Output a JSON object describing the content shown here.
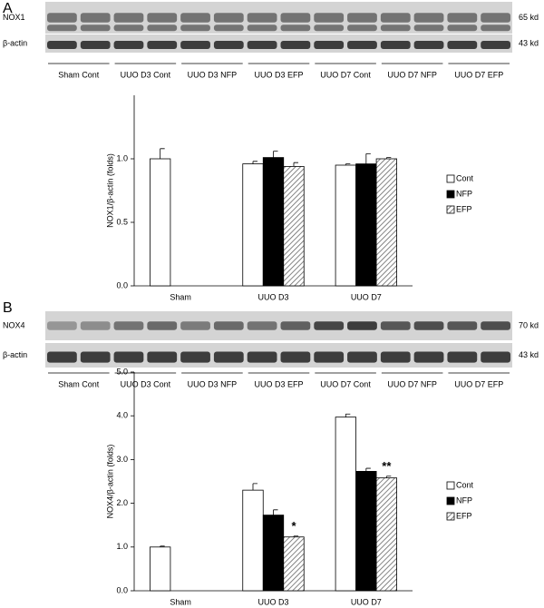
{
  "chart_data": [
    {
      "type": "bar",
      "panel": "A",
      "ylabel": "NOX1/β-actin (folds)",
      "blot": {
        "bands": [
          {
            "label": "NOX1",
            "size": "65 kd"
          },
          {
            "label": "β-actin",
            "size": "43 kd"
          }
        ],
        "lanes": [
          "Sham Cont",
          "UUO  D3 Cont",
          "UUO  D3 NFP",
          "UUO  D3 EFP",
          "UUO  D7 Cont",
          "UUO  D7 NFP",
          "UUO  D7 EFP"
        ]
      },
      "categories": [
        "Sham",
        "UUO D3",
        "UUO D7"
      ],
      "series": [
        {
          "name": "Cont",
          "color": "#ffffff",
          "values": [
            1.0,
            0.96,
            0.95
          ],
          "errors": [
            0.08,
            0.02,
            0.01
          ]
        },
        {
          "name": "NFP",
          "color": "#000000",
          "values": [
            null,
            1.01,
            0.96
          ],
          "errors": [
            null,
            0.05,
            0.08
          ]
        },
        {
          "name": "EFP",
          "color": "#bbbbbb",
          "hatch": true,
          "values": [
            null,
            0.94,
            1.0
          ],
          "errors": [
            null,
            0.03,
            0.01
          ]
        }
      ],
      "annotations": [],
      "ylim": [
        0,
        1.5
      ],
      "yticks": [
        {
          "value": 0,
          "label": "0.0"
        },
        {
          "value": 0.5,
          "label": "0.5"
        },
        {
          "value": 1,
          "label": "1.0"
        }
      ],
      "legend": "right"
    },
    {
      "type": "bar",
      "panel": "B",
      "ylabel": "NOX4/β-actin (folds)",
      "blot": {
        "bands": [
          {
            "label": "NOX4",
            "size": "70 kd"
          },
          {
            "label": "β-actin",
            "size": "43 kd"
          }
        ],
        "lanes": [
          "Sham Cont",
          "UUO  D3 Cont",
          "UUO  D3 NFP",
          "UUO  D3 EFP",
          "UUO  D7 Cont",
          "UUO  D7 NFP",
          "UUO  D7 EFP"
        ]
      },
      "categories": [
        "Sham",
        "UUO D3",
        "UUO D7"
      ],
      "series": [
        {
          "name": "Cont",
          "color": "#ffffff",
          "values": [
            1.0,
            2.3,
            3.97
          ],
          "errors": [
            0.02,
            0.15,
            0.07
          ]
        },
        {
          "name": "NFP",
          "color": "#000000",
          "values": [
            null,
            1.73,
            2.73
          ],
          "errors": [
            null,
            0.12,
            0.07
          ]
        },
        {
          "name": "EFP",
          "color": "#bbbbbb",
          "hatch": true,
          "values": [
            null,
            1.23,
            2.58
          ],
          "errors": [
            null,
            0.02,
            0.04
          ]
        }
      ],
      "annotations": [
        {
          "text": "*",
          "series": 2,
          "category": 1
        },
        {
          "text": "**",
          "series": 2,
          "category": 2
        }
      ],
      "ylim": [
        0,
        5
      ],
      "yticks": [
        {
          "value": 0,
          "label": "0.0"
        },
        {
          "value": 1,
          "label": "1.0"
        },
        {
          "value": 2,
          "label": "2.0"
        },
        {
          "value": 3,
          "label": "3.0"
        },
        {
          "value": 4,
          "label": "4.0"
        },
        {
          "value": 5,
          "label": "5.0"
        }
      ],
      "legend": "right"
    }
  ]
}
